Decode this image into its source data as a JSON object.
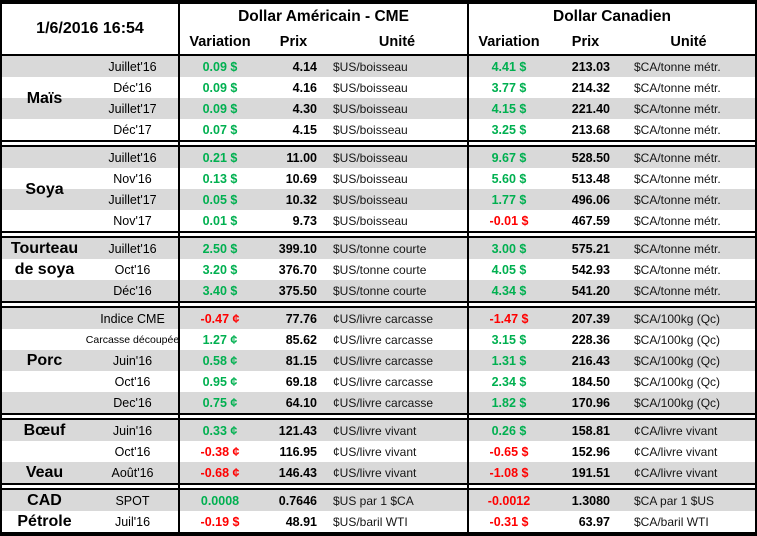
{
  "header": {
    "timestamp": "1/6/2016 16:54",
    "usd_title": "Dollar Américain - CME",
    "cad_title": "Dollar Canadien",
    "col_variation": "Variation",
    "col_prix": "Prix",
    "col_unite": "Unité"
  },
  "colors": {
    "positive": "#00B050",
    "negative": "#FF0000",
    "row_stripe": "#D9D9D9",
    "border": "#000000"
  },
  "sections": [
    {
      "label": "Maïs",
      "rows": [
        {
          "month": "Juillet'16",
          "us_var": "0.09 $",
          "us_dir": "pos",
          "us_prix": "4.14",
          "us_unit": "$US/boisseau",
          "ca_var": "4.41 $",
          "ca_dir": "pos",
          "ca_prix": "213.03",
          "ca_unit": "$CA/tonne métr."
        },
        {
          "month": "Déc'16",
          "us_var": "0.09 $",
          "us_dir": "pos",
          "us_prix": "4.16",
          "us_unit": "$US/boisseau",
          "ca_var": "3.77 $",
          "ca_dir": "pos",
          "ca_prix": "214.32",
          "ca_unit": "$CA/tonne métr."
        },
        {
          "month": "Juillet'17",
          "us_var": "0.09 $",
          "us_dir": "pos",
          "us_prix": "4.30",
          "us_unit": "$US/boisseau",
          "ca_var": "4.15 $",
          "ca_dir": "pos",
          "ca_prix": "221.40",
          "ca_unit": "$CA/tonne métr."
        },
        {
          "month": "Déc'17",
          "us_var": "0.07 $",
          "us_dir": "pos",
          "us_prix": "4.15",
          "us_unit": "$US/boisseau",
          "ca_var": "3.25 $",
          "ca_dir": "pos",
          "ca_prix": "213.68",
          "ca_unit": "$CA/tonne métr."
        }
      ]
    },
    {
      "label": "Soya",
      "rows": [
        {
          "month": "Juillet'16",
          "us_var": "0.21 $",
          "us_dir": "pos",
          "us_prix": "11.00",
          "us_unit": "$US/boisseau",
          "ca_var": "9.67 $",
          "ca_dir": "pos",
          "ca_prix": "528.50",
          "ca_unit": "$CA/tonne métr."
        },
        {
          "month": "Nov'16",
          "us_var": "0.13 $",
          "us_dir": "pos",
          "us_prix": "10.69",
          "us_unit": "$US/boisseau",
          "ca_var": "5.60 $",
          "ca_dir": "pos",
          "ca_prix": "513.48",
          "ca_unit": "$CA/tonne métr."
        },
        {
          "month": "Juillet'17",
          "us_var": "0.05 $",
          "us_dir": "pos",
          "us_prix": "10.32",
          "us_unit": "$US/boisseau",
          "ca_var": "1.77 $",
          "ca_dir": "pos",
          "ca_prix": "496.06",
          "ca_unit": "$CA/tonne métr."
        },
        {
          "month": "Nov'17",
          "us_var": "0.01 $",
          "us_dir": "pos",
          "us_prix": "9.73",
          "us_unit": "$US/boisseau",
          "ca_var": "-0.01 $",
          "ca_dir": "neg",
          "ca_prix": "467.59",
          "ca_unit": "$CA/tonne métr."
        }
      ]
    },
    {
      "label": "Tourteau\nde soya",
      "label_align": "top",
      "rows": [
        {
          "month": "Juillet'16",
          "us_var": "2.50 $",
          "us_dir": "pos",
          "us_prix": "399.10",
          "us_unit": "$US/tonne courte",
          "ca_var": "3.00 $",
          "ca_dir": "pos",
          "ca_prix": "575.21",
          "ca_unit": "$CA/tonne métr."
        },
        {
          "month": "Oct'16",
          "us_var": "3.20 $",
          "us_dir": "pos",
          "us_prix": "376.70",
          "us_unit": "$US/tonne courte",
          "ca_var": "4.05 $",
          "ca_dir": "pos",
          "ca_prix": "542.93",
          "ca_unit": "$CA/tonne métr."
        },
        {
          "month": "Déc'16",
          "us_var": "3.40 $",
          "us_dir": "pos",
          "us_prix": "375.50",
          "us_unit": "$US/tonne courte",
          "ca_var": "4.34 $",
          "ca_dir": "pos",
          "ca_prix": "541.20",
          "ca_unit": "$CA/tonne métr."
        }
      ]
    },
    {
      "label": "Porc",
      "rows": [
        {
          "month": "Indice CME",
          "us_var": "-0.47 ¢",
          "us_dir": "neg",
          "us_prix": "77.76",
          "us_unit": "¢US/livre carcasse",
          "ca_var": "-1.47 $",
          "ca_dir": "neg",
          "ca_prix": "207.39",
          "ca_unit": "$CA/100kg (Qc)"
        },
        {
          "month": "Carcasse découpée",
          "month_small": true,
          "us_var": "1.27 ¢",
          "us_dir": "pos",
          "us_prix": "85.62",
          "us_unit": "¢US/livre carcasse",
          "ca_var": "3.15 $",
          "ca_dir": "pos",
          "ca_prix": "228.36",
          "ca_unit": "$CA/100kg (Qc)"
        },
        {
          "month": "Juin'16",
          "us_var": "0.58 ¢",
          "us_dir": "pos",
          "us_prix": "81.15",
          "us_unit": "¢US/livre carcasse",
          "ca_var": "1.31 $",
          "ca_dir": "pos",
          "ca_prix": "216.43",
          "ca_unit": "$CA/100kg (Qc)"
        },
        {
          "month": "Oct'16",
          "us_var": "0.95 ¢",
          "us_dir": "pos",
          "us_prix": "69.18",
          "us_unit": "¢US/livre carcasse",
          "ca_var": "2.34 $",
          "ca_dir": "pos",
          "ca_prix": "184.50",
          "ca_unit": "$CA/100kg (Qc)"
        },
        {
          "month": "Dec'16",
          "us_var": "0.75 ¢",
          "us_dir": "pos",
          "us_prix": "64.10",
          "us_unit": "¢US/livre carcasse",
          "ca_var": "1.82 $",
          "ca_dir": "pos",
          "ca_prix": "170.96",
          "ca_unit": "$CA/100kg (Qc)"
        }
      ]
    },
    {
      "label": "",
      "rows": [
        {
          "group": "Bœuf",
          "month": "Juin'16",
          "us_var": "0.33 ¢",
          "us_dir": "pos",
          "us_prix": "121.43",
          "us_unit": "¢US/livre vivant",
          "ca_var": "0.26 $",
          "ca_dir": "pos",
          "ca_prix": "158.81",
          "ca_unit": "¢CA/livre vivant"
        },
        {
          "group": "",
          "month": "Oct'16",
          "us_var": "-0.38 ¢",
          "us_dir": "neg",
          "us_prix": "116.95",
          "us_unit": "¢US/livre vivant",
          "ca_var": "-0.65 $",
          "ca_dir": "neg",
          "ca_prix": "152.96",
          "ca_unit": "¢CA/livre vivant"
        },
        {
          "group": "Veau",
          "month": "Août'16",
          "us_var": "-0.68 ¢",
          "us_dir": "neg",
          "us_prix": "146.43",
          "us_unit": "¢US/livre vivant",
          "ca_var": "-1.08 $",
          "ca_dir": "neg",
          "ca_prix": "191.51",
          "ca_unit": "¢CA/livre vivant"
        }
      ]
    },
    {
      "label": "",
      "rows": [
        {
          "group": "CAD",
          "month": "SPOT",
          "us_var": "0.0008",
          "us_dir": "pos",
          "us_prix": "0.7646",
          "us_unit": "$US par 1 $CA",
          "ca_var": "-0.0012",
          "ca_dir": "neg",
          "ca_prix": "1.3080",
          "ca_unit": "$CA par 1 $US"
        },
        {
          "group": "Pétrole",
          "month": "Juil'16",
          "us_var": "-0.19 $",
          "us_dir": "neg",
          "us_prix": "48.91",
          "us_unit": "$US/baril WTI",
          "ca_var": "-0.31 $",
          "ca_dir": "neg",
          "ca_prix": "63.97",
          "ca_unit": "$CA/baril WTI"
        }
      ]
    }
  ]
}
